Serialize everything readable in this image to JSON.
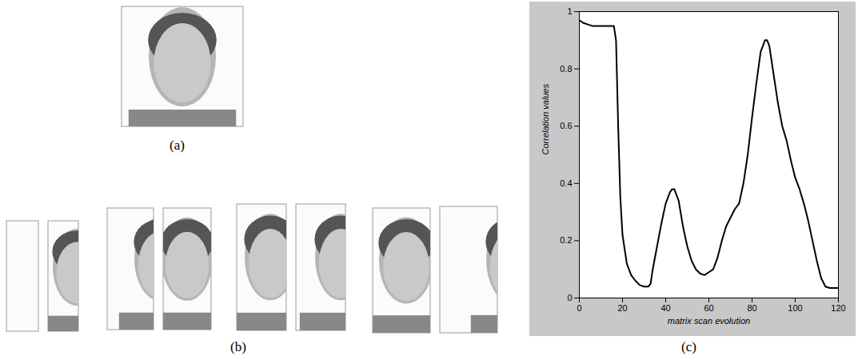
{
  "figure": {
    "panel_labels": [
      "(a)",
      "(b)"
    ]
  },
  "chart_data": {
    "type": "line",
    "panel_label": "(c)",
    "x_label": "matrix scan evolution",
    "y_label": "Correlation values",
    "x": [
      0,
      2,
      4,
      6,
      8,
      10,
      12,
      14,
      16,
      17,
      18,
      19,
      20,
      22,
      24,
      26,
      28,
      30,
      32,
      33,
      34,
      36,
      38,
      40,
      42,
      43,
      44,
      46,
      48,
      50,
      52,
      54,
      56,
      58,
      60,
      62,
      64,
      66,
      68,
      70,
      72,
      74,
      76,
      78,
      80,
      82,
      84,
      86,
      87,
      88,
      90,
      92,
      94,
      96,
      98,
      100,
      102,
      104,
      106,
      108,
      110,
      112,
      114,
      116,
      118,
      120
    ],
    "values": [
      0.97,
      0.96,
      0.955,
      0.95,
      0.95,
      0.95,
      0.95,
      0.95,
      0.95,
      0.9,
      0.6,
      0.35,
      0.22,
      0.12,
      0.08,
      0.06,
      0.045,
      0.04,
      0.04,
      0.05,
      0.1,
      0.18,
      0.26,
      0.33,
      0.37,
      0.38,
      0.38,
      0.34,
      0.25,
      0.18,
      0.13,
      0.1,
      0.085,
      0.08,
      0.09,
      0.1,
      0.14,
      0.2,
      0.25,
      0.28,
      0.31,
      0.33,
      0.4,
      0.5,
      0.63,
      0.75,
      0.86,
      0.9,
      0.9,
      0.88,
      0.78,
      0.68,
      0.6,
      0.55,
      0.48,
      0.42,
      0.38,
      0.33,
      0.27,
      0.2,
      0.13,
      0.07,
      0.04,
      0.035,
      0.035,
      0.035
    ],
    "color": "#000000",
    "xlim": [
      0,
      120
    ],
    "xticks": [
      0,
      20,
      40,
      60,
      80,
      100,
      120
    ],
    "ylim": [
      0,
      1
    ],
    "yticks": [
      0,
      0.2,
      0.4,
      0.6,
      0.8,
      1
    ],
    "grid": false
  }
}
